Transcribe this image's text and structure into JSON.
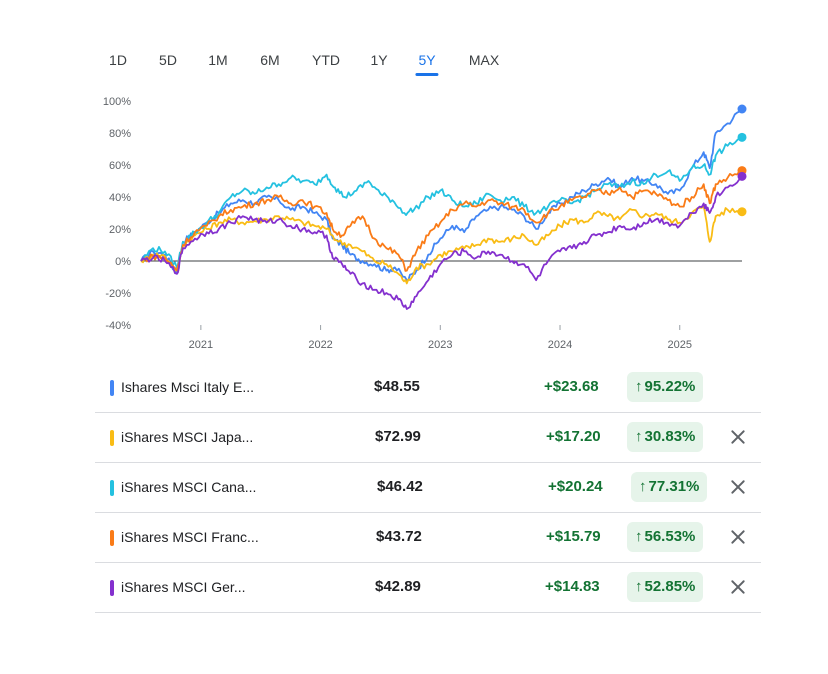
{
  "ranges": [
    {
      "label": "1D",
      "active": false
    },
    {
      "label": "5D",
      "active": false
    },
    {
      "label": "1M",
      "active": false
    },
    {
      "label": "6M",
      "active": false
    },
    {
      "label": "YTD",
      "active": false
    },
    {
      "label": "1Y",
      "active": false
    },
    {
      "label": "5Y",
      "active": true
    },
    {
      "label": "MAX",
      "active": false
    }
  ],
  "chart_data": {
    "type": "line",
    "title": "",
    "xlabel": "",
    "ylabel": "",
    "x_ticks": [
      "2021",
      "2022",
      "2023",
      "2024",
      "2025"
    ],
    "y_ticks": [
      "100%",
      "80%",
      "60%",
      "40%",
      "20%",
      "0%",
      "-20%",
      "-40%"
    ],
    "ylim": [
      -40,
      100
    ],
    "xlim": [
      2020.5,
      2025.52
    ],
    "baseline": 0,
    "series": [
      {
        "color": "#4285f4",
        "points": [
          [
            2020.5,
            0
          ],
          [
            2020.6,
            6
          ],
          [
            2020.7,
            4
          ],
          [
            2020.8,
            -8
          ],
          [
            2020.85,
            12
          ],
          [
            2020.95,
            18
          ],
          [
            2021.05,
            24
          ],
          [
            2021.15,
            30
          ],
          [
            2021.25,
            36
          ],
          [
            2021.35,
            38
          ],
          [
            2021.45,
            36
          ],
          [
            2021.55,
            40
          ],
          [
            2021.65,
            38
          ],
          [
            2021.75,
            32
          ],
          [
            2021.85,
            34
          ],
          [
            2021.95,
            30
          ],
          [
            2022.05,
            26
          ],
          [
            2022.1,
            14
          ],
          [
            2022.18,
            10
          ],
          [
            2022.25,
            4
          ],
          [
            2022.35,
            0
          ],
          [
            2022.45,
            -2
          ],
          [
            2022.55,
            -6
          ],
          [
            2022.62,
            -4
          ],
          [
            2022.72,
            -12
          ],
          [
            2022.8,
            -6
          ],
          [
            2022.9,
            4
          ],
          [
            2023.0,
            14
          ],
          [
            2023.1,
            22
          ],
          [
            2023.2,
            18
          ],
          [
            2023.3,
            28
          ],
          [
            2023.4,
            32
          ],
          [
            2023.5,
            34
          ],
          [
            2023.6,
            32
          ],
          [
            2023.7,
            28
          ],
          [
            2023.8,
            20
          ],
          [
            2023.9,
            30
          ],
          [
            2024.0,
            36
          ],
          [
            2024.1,
            40
          ],
          [
            2024.2,
            44
          ],
          [
            2024.3,
            48
          ],
          [
            2024.4,
            52
          ],
          [
            2024.5,
            46
          ],
          [
            2024.6,
            52
          ],
          [
            2024.7,
            50
          ],
          [
            2024.8,
            48
          ],
          [
            2024.9,
            42
          ],
          [
            2025.0,
            44
          ],
          [
            2025.1,
            58
          ],
          [
            2025.2,
            68
          ],
          [
            2025.25,
            58
          ],
          [
            2025.3,
            80
          ],
          [
            2025.4,
            86
          ],
          [
            2025.52,
            95
          ]
        ]
      },
      {
        "color": "#f9bc15",
        "points": [
          [
            2020.5,
            0
          ],
          [
            2020.6,
            4
          ],
          [
            2020.7,
            3
          ],
          [
            2020.8,
            -6
          ],
          [
            2020.85,
            10
          ],
          [
            2020.95,
            16
          ],
          [
            2021.05,
            20
          ],
          [
            2021.15,
            24
          ],
          [
            2021.25,
            26
          ],
          [
            2021.35,
            24
          ],
          [
            2021.45,
            25
          ],
          [
            2021.55,
            26
          ],
          [
            2021.65,
            28
          ],
          [
            2021.75,
            26
          ],
          [
            2021.85,
            24
          ],
          [
            2021.95,
            22
          ],
          [
            2022.05,
            20
          ],
          [
            2022.15,
            12
          ],
          [
            2022.25,
            10
          ],
          [
            2022.35,
            6
          ],
          [
            2022.45,
            0
          ],
          [
            2022.55,
            -2
          ],
          [
            2022.65,
            -8
          ],
          [
            2022.72,
            -14
          ],
          [
            2022.8,
            -4
          ],
          [
            2022.9,
            -2
          ],
          [
            2023.0,
            4
          ],
          [
            2023.1,
            6
          ],
          [
            2023.2,
            8
          ],
          [
            2023.3,
            10
          ],
          [
            2023.4,
            14
          ],
          [
            2023.5,
            12
          ],
          [
            2023.6,
            14
          ],
          [
            2023.7,
            16
          ],
          [
            2023.8,
            10
          ],
          [
            2023.9,
            16
          ],
          [
            2024.0,
            22
          ],
          [
            2024.1,
            26
          ],
          [
            2024.2,
            24
          ],
          [
            2024.3,
            30
          ],
          [
            2024.4,
            28
          ],
          [
            2024.5,
            26
          ],
          [
            2024.6,
            32
          ],
          [
            2024.7,
            28
          ],
          [
            2024.8,
            30
          ],
          [
            2024.9,
            26
          ],
          [
            2025.0,
            24
          ],
          [
            2025.1,
            30
          ],
          [
            2025.2,
            34
          ],
          [
            2025.25,
            12
          ],
          [
            2025.3,
            28
          ],
          [
            2025.4,
            32
          ],
          [
            2025.52,
            30.8
          ]
        ]
      },
      {
        "color": "#24c1e0",
        "points": [
          [
            2020.5,
            0
          ],
          [
            2020.6,
            8
          ],
          [
            2020.7,
            6
          ],
          [
            2020.8,
            -4
          ],
          [
            2020.85,
            12
          ],
          [
            2020.95,
            18
          ],
          [
            2021.05,
            24
          ],
          [
            2021.15,
            30
          ],
          [
            2021.25,
            40
          ],
          [
            2021.35,
            44
          ],
          [
            2021.45,
            42
          ],
          [
            2021.55,
            46
          ],
          [
            2021.65,
            48
          ],
          [
            2021.75,
            52
          ],
          [
            2021.85,
            50
          ],
          [
            2021.95,
            48
          ],
          [
            2022.05,
            54
          ],
          [
            2022.12,
            46
          ],
          [
            2022.2,
            40
          ],
          [
            2022.3,
            44
          ],
          [
            2022.4,
            50
          ],
          [
            2022.5,
            42
          ],
          [
            2022.6,
            38
          ],
          [
            2022.7,
            30
          ],
          [
            2022.78,
            32
          ],
          [
            2022.9,
            40
          ],
          [
            2023.0,
            44
          ],
          [
            2023.1,
            38
          ],
          [
            2023.2,
            34
          ],
          [
            2023.3,
            36
          ],
          [
            2023.4,
            42
          ],
          [
            2023.5,
            38
          ],
          [
            2023.6,
            40
          ],
          [
            2023.7,
            34
          ],
          [
            2023.8,
            30
          ],
          [
            2023.9,
            34
          ],
          [
            2024.0,
            38
          ],
          [
            2024.1,
            36
          ],
          [
            2024.2,
            40
          ],
          [
            2024.3,
            44
          ],
          [
            2024.4,
            48
          ],
          [
            2024.5,
            46
          ],
          [
            2024.6,
            50
          ],
          [
            2024.7,
            48
          ],
          [
            2024.8,
            54
          ],
          [
            2024.9,
            56
          ],
          [
            2025.0,
            50
          ],
          [
            2025.1,
            58
          ],
          [
            2025.2,
            60
          ],
          [
            2025.25,
            54
          ],
          [
            2025.3,
            66
          ],
          [
            2025.4,
            72
          ],
          [
            2025.52,
            77.3
          ]
        ]
      },
      {
        "color": "#fa7b17",
        "points": [
          [
            2020.5,
            0
          ],
          [
            2020.6,
            3
          ],
          [
            2020.7,
            2
          ],
          [
            2020.8,
            -6
          ],
          [
            2020.85,
            10
          ],
          [
            2020.95,
            18
          ],
          [
            2021.05,
            22
          ],
          [
            2021.15,
            28
          ],
          [
            2021.25,
            32
          ],
          [
            2021.35,
            34
          ],
          [
            2021.45,
            36
          ],
          [
            2021.55,
            38
          ],
          [
            2021.65,
            40
          ],
          [
            2021.75,
            36
          ],
          [
            2021.85,
            38
          ],
          [
            2021.95,
            34
          ],
          [
            2022.05,
            30
          ],
          [
            2022.1,
            20
          ],
          [
            2022.18,
            16
          ],
          [
            2022.25,
            22
          ],
          [
            2022.35,
            28
          ],
          [
            2022.45,
            14
          ],
          [
            2022.55,
            8
          ],
          [
            2022.65,
            4
          ],
          [
            2022.72,
            -6
          ],
          [
            2022.8,
            6
          ],
          [
            2022.9,
            16
          ],
          [
            2023.0,
            24
          ],
          [
            2023.1,
            32
          ],
          [
            2023.2,
            36
          ],
          [
            2023.3,
            34
          ],
          [
            2023.4,
            38
          ],
          [
            2023.5,
            36
          ],
          [
            2023.6,
            34
          ],
          [
            2023.7,
            32
          ],
          [
            2023.8,
            24
          ],
          [
            2023.9,
            30
          ],
          [
            2024.0,
            34
          ],
          [
            2024.1,
            38
          ],
          [
            2024.2,
            40
          ],
          [
            2024.3,
            44
          ],
          [
            2024.4,
            42
          ],
          [
            2024.5,
            46
          ],
          [
            2024.6,
            40
          ],
          [
            2024.7,
            44
          ],
          [
            2024.8,
            42
          ],
          [
            2024.9,
            38
          ],
          [
            2025.0,
            34
          ],
          [
            2025.1,
            40
          ],
          [
            2025.2,
            48
          ],
          [
            2025.25,
            36
          ],
          [
            2025.3,
            48
          ],
          [
            2025.4,
            52
          ],
          [
            2025.52,
            56.5
          ]
        ]
      },
      {
        "color": "#8430ce",
        "points": [
          [
            2020.5,
            0
          ],
          [
            2020.6,
            2
          ],
          [
            2020.7,
            0
          ],
          [
            2020.8,
            -8
          ],
          [
            2020.85,
            8
          ],
          [
            2020.95,
            14
          ],
          [
            2021.05,
            18
          ],
          [
            2021.15,
            20
          ],
          [
            2021.25,
            24
          ],
          [
            2021.35,
            28
          ],
          [
            2021.45,
            26
          ],
          [
            2021.55,
            24
          ],
          [
            2021.65,
            26
          ],
          [
            2021.75,
            22
          ],
          [
            2021.85,
            20
          ],
          [
            2021.95,
            18
          ],
          [
            2022.05,
            16
          ],
          [
            2022.1,
            2
          ],
          [
            2022.18,
            -2
          ],
          [
            2022.25,
            -8
          ],
          [
            2022.35,
            -14
          ],
          [
            2022.45,
            -18
          ],
          [
            2022.55,
            -20
          ],
          [
            2022.65,
            -24
          ],
          [
            2022.72,
            -30
          ],
          [
            2022.8,
            -22
          ],
          [
            2022.9,
            -12
          ],
          [
            2023.0,
            -2
          ],
          [
            2023.1,
            4
          ],
          [
            2023.2,
            6
          ],
          [
            2023.3,
            2
          ],
          [
            2023.4,
            6
          ],
          [
            2023.5,
            4
          ],
          [
            2023.6,
            0
          ],
          [
            2023.7,
            -2
          ],
          [
            2023.8,
            -12
          ],
          [
            2023.9,
            0
          ],
          [
            2024.0,
            6
          ],
          [
            2024.1,
            8
          ],
          [
            2024.2,
            12
          ],
          [
            2024.3,
            16
          ],
          [
            2024.4,
            18
          ],
          [
            2024.5,
            22
          ],
          [
            2024.6,
            20
          ],
          [
            2024.7,
            24
          ],
          [
            2024.8,
            26
          ],
          [
            2024.9,
            24
          ],
          [
            2025.0,
            22
          ],
          [
            2025.1,
            30
          ],
          [
            2025.2,
            36
          ],
          [
            2025.25,
            30
          ],
          [
            2025.3,
            40
          ],
          [
            2025.4,
            46
          ],
          [
            2025.52,
            52.9
          ]
        ]
      }
    ]
  },
  "rows": [
    {
      "name": "Ishares Msci Italy E...",
      "color": "#4285f4",
      "price": "$48.55",
      "change": "+$23.68",
      "arrow": "↑",
      "pct": "95.22%",
      "removable": false
    },
    {
      "name": "iShares MSCI Japa...",
      "color": "#f9bc15",
      "price": "$72.99",
      "change": "+$17.20",
      "arrow": "↑",
      "pct": "30.83%",
      "removable": true
    },
    {
      "name": "iShares MSCI Cana...",
      "color": "#24c1e0",
      "price": "$46.42",
      "change": "+$20.24",
      "arrow": "↑",
      "pct": "77.31%",
      "removable": true
    },
    {
      "name": "iShares MSCI Franc...",
      "color": "#fa7b17",
      "price": "$43.72",
      "change": "+$15.79",
      "arrow": "↑",
      "pct": "56.53%",
      "removable": true
    },
    {
      "name": "iShares MSCI Ger...",
      "color": "#8430ce",
      "price": "$42.89",
      "change": "+$14.83",
      "arrow": "↑",
      "pct": "52.85%",
      "removable": true
    }
  ]
}
